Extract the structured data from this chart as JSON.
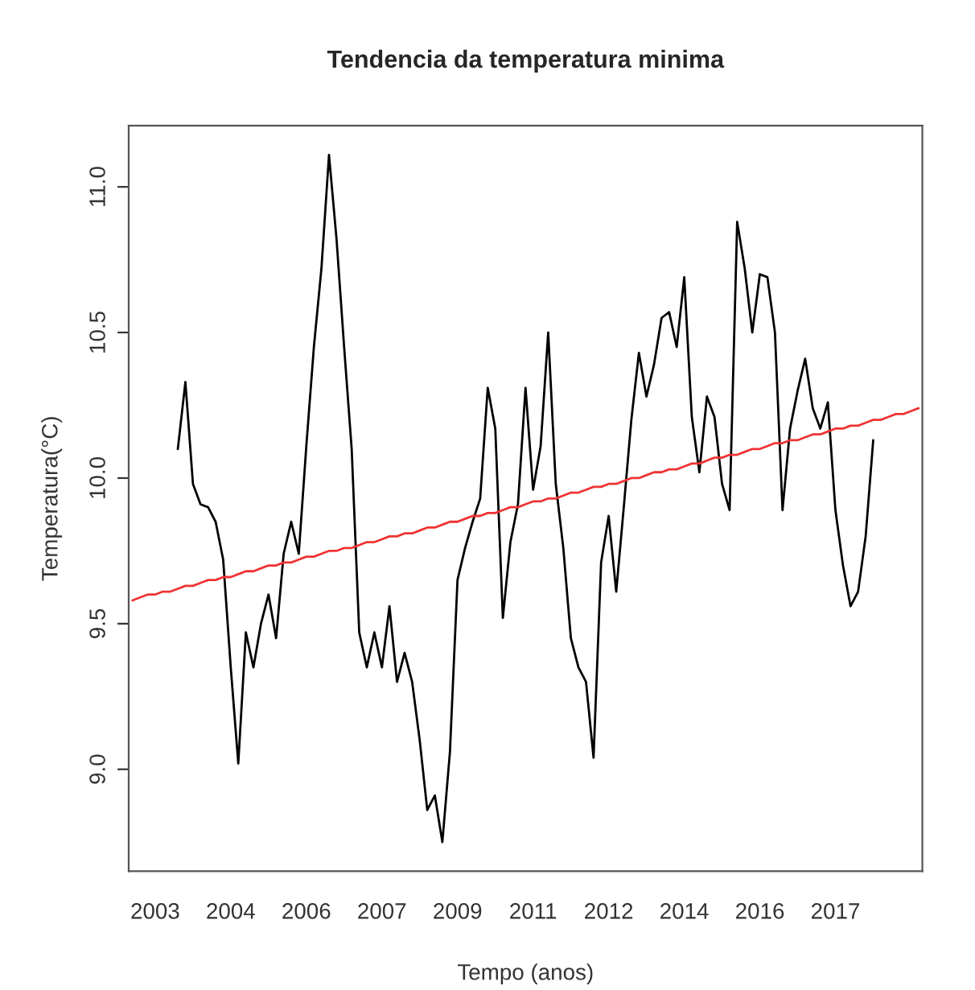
{
  "chart_data": {
    "type": "line",
    "title": "Tendencia da temperatura minima",
    "xlabel": "Tempo (anos)",
    "ylabel": "Temperatura(°C)",
    "categories": [
      null,
      null,
      null,
      "2003",
      null,
      null,
      null,
      null,
      null,
      null,
      null,
      null,
      null,
      "2004",
      null,
      null,
      null,
      null,
      null,
      null,
      null,
      null,
      null,
      "2006",
      null,
      null,
      null,
      null,
      null,
      null,
      null,
      null,
      null,
      "2007",
      null,
      null,
      null,
      null,
      null,
      null,
      null,
      null,
      null,
      "2009",
      null,
      null,
      null,
      null,
      null,
      null,
      null,
      null,
      null,
      "2011",
      null,
      null,
      null,
      null,
      null,
      null,
      null,
      null,
      null,
      "2012",
      null,
      null,
      null,
      null,
      null,
      null,
      null,
      null,
      null,
      "2014",
      null,
      null,
      null,
      null,
      null,
      null,
      null,
      null,
      null,
      "2016",
      null,
      null,
      null,
      null,
      null,
      null,
      null,
      null,
      null,
      "2017",
      null,
      null,
      null,
      null,
      null,
      null,
      null,
      null,
      null,
      null,
      null
    ],
    "ylim": [
      8.65,
      11.21
    ],
    "yticks": [
      {
        "value": 9,
        "label": "9.0"
      },
      {
        "value": 9.5,
        "label": "9.5"
      },
      {
        "value": 10,
        "label": "10.0"
      },
      {
        "value": 10.5,
        "label": "10.5"
      },
      {
        "value": 11,
        "label": "11.0"
      }
    ],
    "grid": false,
    "marker": "none",
    "line_style": "solid",
    "series": [
      {
        "color": "#000000",
        "values": [
          null,
          null,
          null,
          null,
          null,
          null,
          10.1,
          10.33,
          9.98,
          9.91,
          9.9,
          9.85,
          9.72,
          9.35,
          9.02,
          9.47,
          9.35,
          9.5,
          9.6,
          9.45,
          9.74,
          9.85,
          9.74,
          10.11,
          10.45,
          10.72,
          11.11,
          10.82,
          10.45,
          10.1,
          9.47,
          9.35,
          9.47,
          9.35,
          9.56,
          9.3,
          9.4,
          9.3,
          9.1,
          8.86,
          8.91,
          8.75,
          9.06,
          9.65,
          9.76,
          9.85,
          9.93,
          10.31,
          10.17,
          9.52,
          9.78,
          9.91,
          10.31,
          9.96,
          10.11,
          10.5,
          9.98,
          9.76,
          9.45,
          9.35,
          9.3,
          9.04,
          9.71,
          9.87,
          9.61,
          9.9,
          10.2,
          10.43,
          10.28,
          10.39,
          10.55,
          10.57,
          10.45,
          10.69,
          10.21,
          10.02,
          10.28,
          10.21,
          9.98,
          9.89,
          10.88,
          10.72,
          10.5,
          10.7,
          10.69,
          10.5,
          9.89,
          10.17,
          10.3,
          10.41,
          10.24,
          10.17,
          10.26,
          9.89,
          9.7,
          9.56,
          9.61,
          9.8,
          10.13,
          null,
          null,
          null,
          null,
          null,
          null
        ]
      },
      {
        "color": "#ee3333",
        "values": [
          9.58,
          9.59,
          9.6,
          9.6,
          9.61,
          9.61,
          9.62,
          9.63,
          9.63,
          9.64,
          9.65,
          9.65,
          9.66,
          9.66,
          9.67,
          9.68,
          9.68,
          9.69,
          9.7,
          9.7,
          9.71,
          9.71,
          9.72,
          9.73,
          9.73,
          9.74,
          9.75,
          9.75,
          9.76,
          9.76,
          9.77,
          9.78,
          9.78,
          9.79,
          9.8,
          9.8,
          9.81,
          9.81,
          9.82,
          9.83,
          9.83,
          9.84,
          9.85,
          9.85,
          9.86,
          9.87,
          9.87,
          9.88,
          9.88,
          9.89,
          9.9,
          9.9,
          9.91,
          9.92,
          9.92,
          9.93,
          9.93,
          9.94,
          9.95,
          9.95,
          9.96,
          9.97,
          9.97,
          9.98,
          9.98,
          9.99,
          10.0,
          10.0,
          10.01,
          10.02,
          10.02,
          10.03,
          10.03,
          10.04,
          10.05,
          10.05,
          10.06,
          10.07,
          10.07,
          10.08,
          10.08,
          10.09,
          10.1,
          10.1,
          10.11,
          10.12,
          10.12,
          10.13,
          10.13,
          10.14,
          10.15,
          10.15,
          10.16,
          10.17,
          10.17,
          10.18,
          10.18,
          10.19,
          10.2,
          10.2,
          10.21,
          10.22,
          10.22,
          10.23,
          10.24
        ]
      }
    ]
  }
}
